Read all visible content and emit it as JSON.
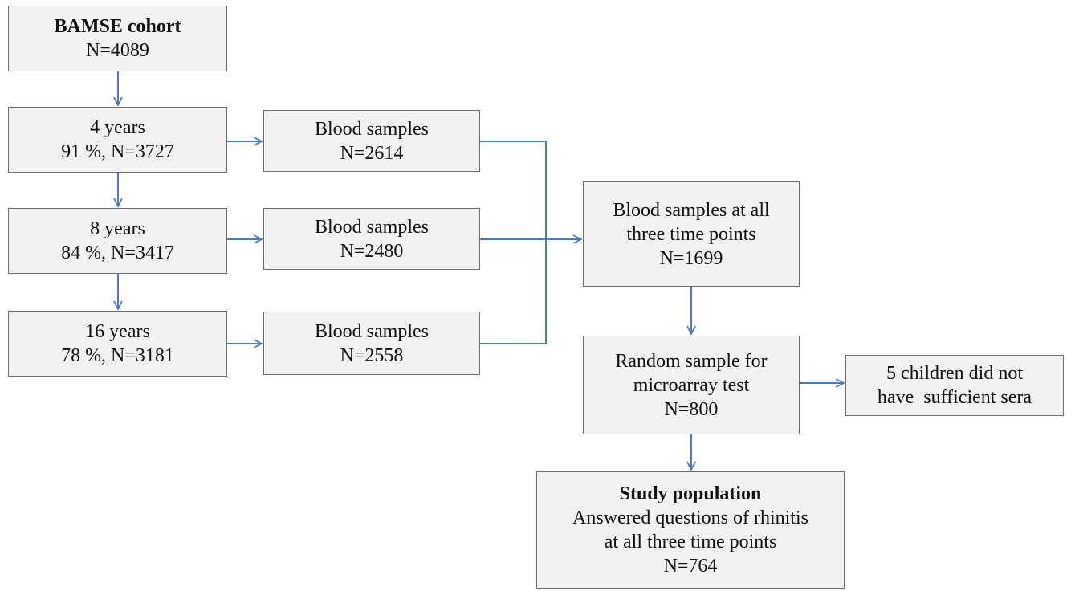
{
  "nodes": [
    {
      "title": "BAMSE cohort",
      "lines": [
        "N=4089"
      ]
    },
    {
      "lines": [
        "4 years",
        "91 %, N=3727"
      ]
    },
    {
      "lines": [
        "Blood samples",
        "N=2614"
      ]
    },
    {
      "lines": [
        "8 years",
        "84 %, N=3417"
      ]
    },
    {
      "lines": [
        "Blood samples",
        "N=2480"
      ]
    },
    {
      "lines": [
        "16 years",
        "78 %, N=3181"
      ]
    },
    {
      "lines": [
        "Blood samples",
        "N=2558"
      ]
    },
    {
      "lines": [
        "Blood samples at all",
        "three time points",
        "N=1699"
      ]
    },
    {
      "lines": [
        "Random sample for",
        "microarray test",
        "N=800"
      ]
    },
    {
      "lines": [
        "5 children did not",
        "have  sufficient sera"
      ]
    },
    {
      "title": "Study population",
      "lines": [
        "Answered questions of rhinitis",
        "at all three time points",
        "N=764"
      ]
    }
  ]
}
